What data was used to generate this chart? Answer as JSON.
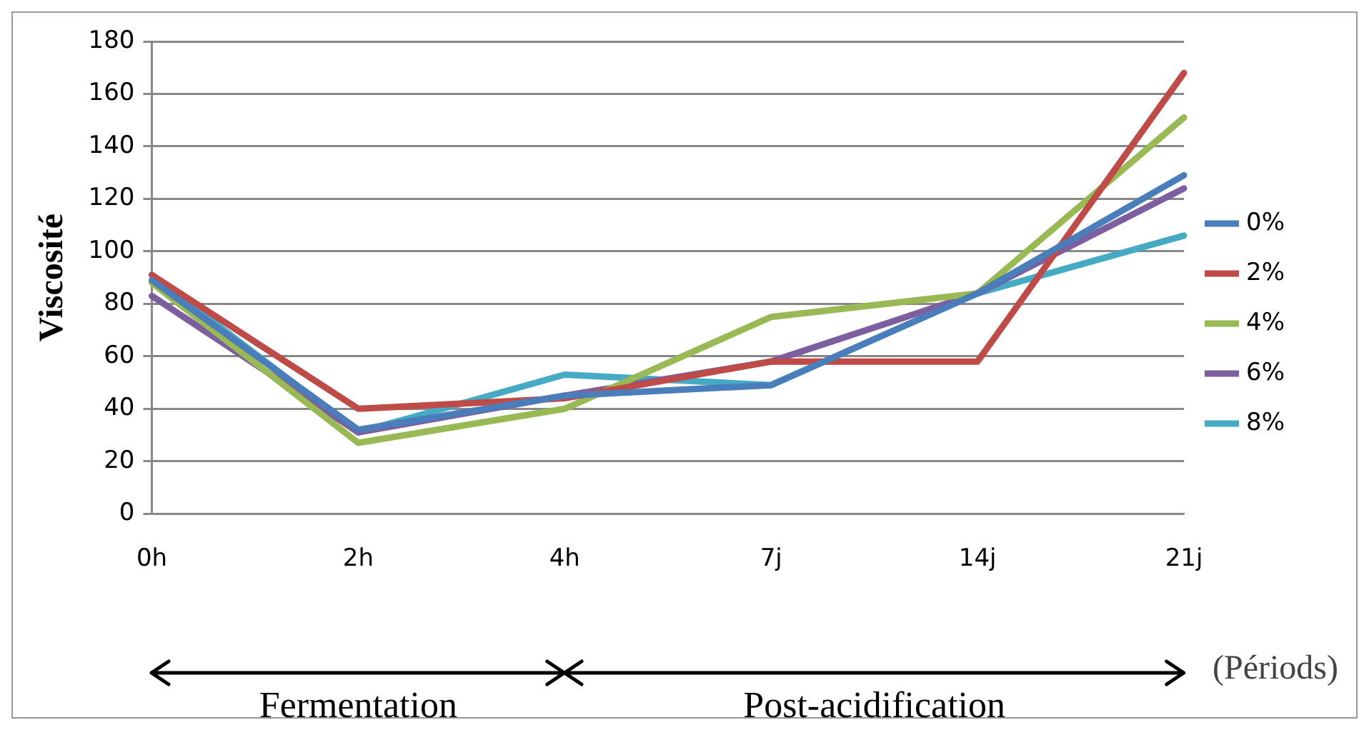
{
  "chart_data": {
    "type": "line",
    "ylabel": "Viscosité",
    "xlabel": "(Périods)",
    "categories": [
      "0h",
      "2h",
      "4h",
      "7j",
      "14j",
      "21j"
    ],
    "series": [
      {
        "name": "0%",
        "color": "#4a7ebb",
        "values": [
          89,
          32,
          45,
          49,
          84,
          129
        ]
      },
      {
        "name": "2%",
        "color": "#be4b48",
        "values": [
          91,
          40,
          44,
          58,
          58,
          168
        ]
      },
      {
        "name": "4%",
        "color": "#98b954",
        "values": [
          88,
          27,
          40,
          75,
          84,
          151
        ]
      },
      {
        "name": "6%",
        "color": "#7d5fa0",
        "values": [
          83,
          31,
          45,
          58,
          84,
          124
        ]
      },
      {
        "name": "8%",
        "color": "#46aac5",
        "values": [
          91,
          31,
          53,
          49,
          84,
          106
        ]
      }
    ],
    "ylim": [
      0,
      180
    ],
    "yticks": [
      0,
      20,
      40,
      60,
      80,
      100,
      120,
      140,
      160,
      180
    ],
    "grid": "y",
    "legend": "right",
    "marker": "none",
    "line_style": "solid",
    "annotations": [
      "Fermentation",
      "Post-acidification"
    ]
  }
}
